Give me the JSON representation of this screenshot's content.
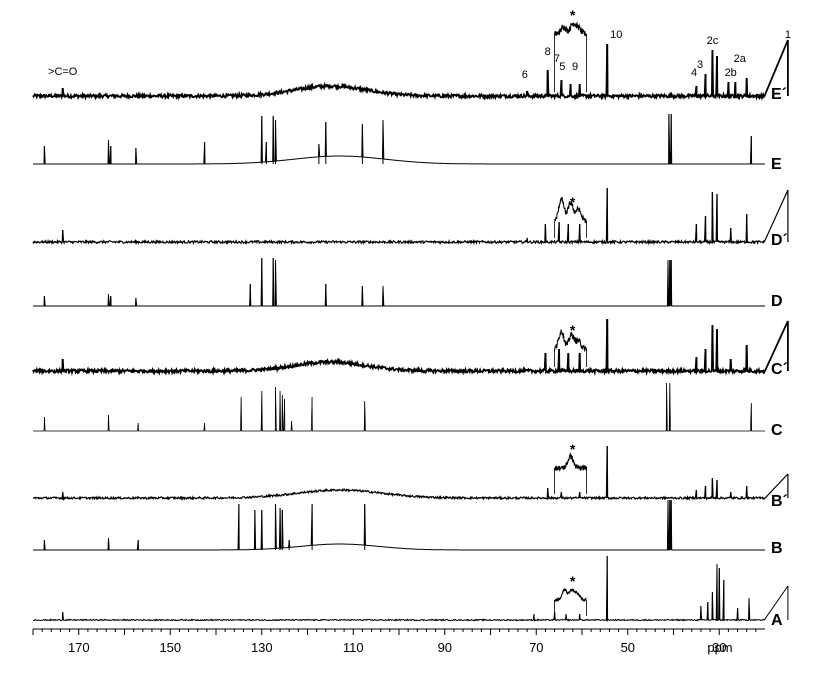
{
  "chart_data": {
    "type": "line",
    "title": "",
    "xlabel": "ppm",
    "ylabel": "",
    "x_reversed": true,
    "xlim": [
      180,
      20
    ],
    "x_ticks": [
      170,
      150,
      130,
      110,
      90,
      70,
      50,
      30
    ],
    "grid": false,
    "legend": "none",
    "series": [
      {
        "name": "E´",
        "linewidth": 1.8,
        "noise": 1.6,
        "hump": {
          "center": 115,
          "width": 11,
          "height": 10
        },
        "peaks": [
          [
            173.5,
            8
          ],
          [
            72,
            5
          ],
          [
            67.5,
            26
          ],
          [
            64.5,
            16
          ],
          [
            62.5,
            12
          ],
          [
            60.5,
            12
          ],
          [
            54.5,
            52
          ],
          [
            35,
            10
          ],
          [
            33,
            22
          ],
          [
            31.5,
            46
          ],
          [
            30.5,
            40
          ],
          [
            28,
            14
          ],
          [
            26.5,
            14
          ],
          [
            24,
            18
          ],
          [
            15,
            56
          ]
        ],
        "inset": {
          "center": 62.5,
          "half_width": 3.5,
          "noise": 3,
          "bumps": [
            [
              62,
              10
            ],
            [
              64,
              7
            ],
            [
              60.8,
              6
            ]
          ]
        }
      },
      {
        "name": "E",
        "linewidth": 1.0,
        "noise": 0,
        "hump": {
          "center": 113,
          "width": 14,
          "height": 8
        },
        "peaks": [
          [
            177.5,
            18
          ],
          [
            163.5,
            24
          ],
          [
            163,
            18
          ],
          [
            157.5,
            16
          ],
          [
            142.5,
            22
          ],
          [
            130,
            48
          ],
          [
            129,
            22
          ],
          [
            127.5,
            48
          ],
          [
            127,
            44
          ],
          [
            117.5,
            20
          ],
          [
            116,
            42
          ],
          [
            108,
            40
          ],
          [
            103.5,
            44
          ],
          [
            41,
            50
          ],
          [
            40.5,
            50
          ],
          [
            23,
            28
          ]
        ]
      },
      {
        "name": "D´",
        "linewidth": 1.2,
        "noise": 1.2,
        "hump": null,
        "peaks": [
          [
            173.5,
            12
          ],
          [
            72,
            4
          ],
          [
            68,
            18
          ],
          [
            65,
            20
          ],
          [
            63,
            18
          ],
          [
            60.5,
            18
          ],
          [
            54.5,
            54
          ],
          [
            35,
            18
          ],
          [
            33,
            26
          ],
          [
            31.5,
            50
          ],
          [
            30.5,
            48
          ],
          [
            27.5,
            14
          ],
          [
            24,
            28
          ],
          [
            15,
            52
          ]
        ],
        "inset": {
          "center": 62.5,
          "half_width": 3.5,
          "noise": 2.5,
          "bumps": [
            [
              64.5,
              22
            ],
            [
              62.5,
              18
            ],
            [
              60.8,
              12
            ]
          ]
        }
      },
      {
        "name": "D",
        "linewidth": 1.0,
        "noise": 0,
        "hump": null,
        "peaks": [
          [
            177.5,
            10
          ],
          [
            163.5,
            12
          ],
          [
            163,
            10
          ],
          [
            157.5,
            8
          ],
          [
            132.5,
            22
          ],
          [
            130,
            48
          ],
          [
            127.5,
            48
          ],
          [
            127,
            46
          ],
          [
            116,
            22
          ],
          [
            108,
            20
          ],
          [
            103.5,
            20
          ],
          [
            41.2,
            46
          ],
          [
            40.8,
            46
          ],
          [
            40.5,
            46
          ]
        ]
      },
      {
        "name": "C´",
        "linewidth": 1.8,
        "noise": 1.6,
        "hump": {
          "center": 115,
          "width": 11,
          "height": 9
        },
        "peaks": [
          [
            173.5,
            12
          ],
          [
            68,
            18
          ],
          [
            65,
            22
          ],
          [
            63,
            18
          ],
          [
            60.5,
            18
          ],
          [
            54.5,
            52
          ],
          [
            35,
            14
          ],
          [
            33,
            22
          ],
          [
            31.5,
            46
          ],
          [
            30.5,
            42
          ],
          [
            27.5,
            12
          ],
          [
            24,
            26
          ],
          [
            15,
            50
          ]
        ],
        "inset": {
          "center": 62.5,
          "half_width": 3.5,
          "noise": 3,
          "bumps": [
            [
              64.5,
              18
            ],
            [
              62.3,
              14
            ],
            [
              60.8,
              8
            ]
          ]
        }
      },
      {
        "name": "C",
        "linewidth": 0.7,
        "noise": 0,
        "hump": null,
        "peaks": [
          [
            177.5,
            14
          ],
          [
            163.5,
            16
          ],
          [
            157,
            8
          ],
          [
            142.5,
            8
          ],
          [
            134.5,
            34
          ],
          [
            130,
            40
          ],
          [
            127,
            44
          ],
          [
            126,
            40
          ],
          [
            125.5,
            36
          ],
          [
            125,
            32
          ],
          [
            123.5,
            10
          ],
          [
            119,
            34
          ],
          [
            107.5,
            30
          ],
          [
            41.5,
            48
          ],
          [
            40.8,
            48
          ],
          [
            23,
            28
          ]
        ]
      },
      {
        "name": "B´",
        "linewidth": 1.2,
        "noise": 1.0,
        "hump": {
          "center": 113,
          "width": 13,
          "height": 8
        },
        "peaks": [
          [
            173.5,
            6
          ],
          [
            67.5,
            10
          ],
          [
            64.5,
            6
          ],
          [
            60.5,
            6
          ],
          [
            54.5,
            52
          ],
          [
            35,
            8
          ],
          [
            33,
            12
          ],
          [
            31.5,
            20
          ],
          [
            30.5,
            18
          ],
          [
            27.5,
            6
          ],
          [
            24,
            12
          ],
          [
            15,
            24
          ]
        ],
        "inset": {
          "center": 62.5,
          "half_width": 3.5,
          "noise": 2.5,
          "bumps": [
            [
              62.5,
              12
            ]
          ]
        }
      },
      {
        "name": "B",
        "linewidth": 1.0,
        "noise": 0,
        "hump": {
          "center": 113,
          "width": 12,
          "height": 6
        },
        "peaks": [
          [
            177.5,
            10
          ],
          [
            163.5,
            12
          ],
          [
            157,
            10
          ],
          [
            135,
            46
          ],
          [
            131.5,
            40
          ],
          [
            130,
            40
          ],
          [
            127,
            46
          ],
          [
            126,
            42
          ],
          [
            125.5,
            40
          ],
          [
            124,
            10
          ],
          [
            119,
            46
          ],
          [
            107.5,
            46
          ],
          [
            41.2,
            50
          ],
          [
            40.8,
            50
          ],
          [
            40.5,
            50
          ]
        ]
      },
      {
        "name": "A",
        "linewidth": 1.0,
        "noise": 0.6,
        "hump": null,
        "peaks": [
          [
            173.5,
            8
          ],
          [
            70.5,
            6
          ],
          [
            66,
            8
          ],
          [
            63.5,
            6
          ],
          [
            60.5,
            6
          ],
          [
            54.5,
            64
          ],
          [
            34,
            14
          ],
          [
            32.5,
            18
          ],
          [
            31.5,
            28
          ],
          [
            30.5,
            56
          ],
          [
            30,
            52
          ],
          [
            29,
            40
          ],
          [
            26,
            12
          ],
          [
            23.5,
            22
          ],
          [
            15,
            34
          ]
        ],
        "inset": {
          "center": 62.5,
          "half_width": 3.5,
          "noise": 1.5,
          "bumps": [
            [
              63.8,
              10
            ],
            [
              62.2,
              10
            ],
            [
              61,
              6
            ]
          ]
        }
      }
    ],
    "peak_labels": [
      {
        "text": ">C=O",
        "x": 173.5
      },
      {
        "text": "6",
        "x": 72.5
      },
      {
        "text": "8",
        "x": 67.5
      },
      {
        "text": "7",
        "x": 65.5
      },
      {
        "text": "5",
        "x": 64.3
      },
      {
        "text": "9",
        "x": 61.5
      },
      {
        "text": "10",
        "x": 52.5
      },
      {
        "text": "4",
        "x": 35.5
      },
      {
        "text": "3",
        "x": 34.2
      },
      {
        "text": "2c",
        "x": 31.5
      },
      {
        "text": "2b",
        "x": 27.5
      },
      {
        "text": "2a",
        "x": 25.5
      },
      {
        "text": "1",
        "x": 15
      }
    ],
    "annotation": "*"
  }
}
